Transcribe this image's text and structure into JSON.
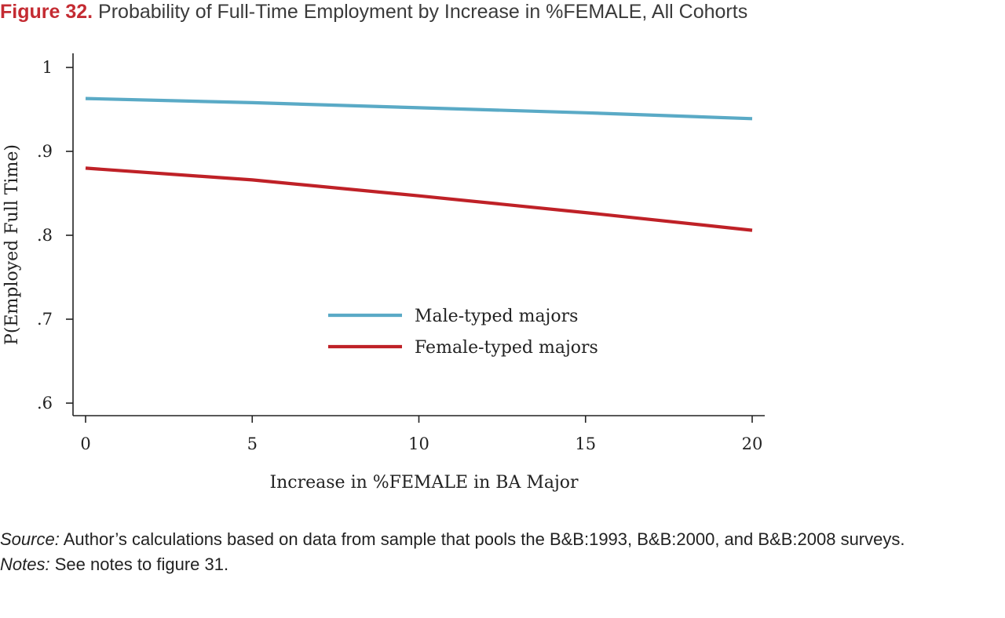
{
  "figure": {
    "label": "Figure 32.",
    "title": "Probability of Full-Time Employment by Increase in %FEMALE, All Cohorts"
  },
  "chart_data": {
    "type": "line",
    "xlabel": "Increase in %FEMALE in BA Major",
    "ylabel": "P(Employed Full Time)",
    "xlim": [
      0,
      20
    ],
    "ylim": [
      0.6,
      1.0
    ],
    "x_ticks": [
      0,
      5,
      10,
      15,
      20
    ],
    "x_tick_labels": [
      "0",
      "5",
      "10",
      "15",
      "20"
    ],
    "y_ticks": [
      0.6,
      0.7,
      0.8,
      0.9,
      1.0
    ],
    "y_tick_labels": [
      ".6",
      ".7",
      ".8",
      ".9",
      "1"
    ],
    "grid": false,
    "legend_position": "center",
    "x": [
      0,
      5,
      10,
      15,
      20
    ],
    "series": [
      {
        "name": "Male-typed majors",
        "color": "#5aaac6",
        "values": [
          0.963,
          0.958,
          0.952,
          0.946,
          0.939
        ]
      },
      {
        "name": "Female-typed majors",
        "color": "#bf2127",
        "values": [
          0.88,
          0.866,
          0.847,
          0.827,
          0.806
        ]
      }
    ]
  },
  "footer": {
    "source_label": "Source:",
    "source_text": "Author’s calculations based on data from sample that pools the B&B:1993, B&B:2000, and B&B:2008 surveys.",
    "notes_label": "Notes:",
    "notes_text": "See notes to figure 31."
  }
}
